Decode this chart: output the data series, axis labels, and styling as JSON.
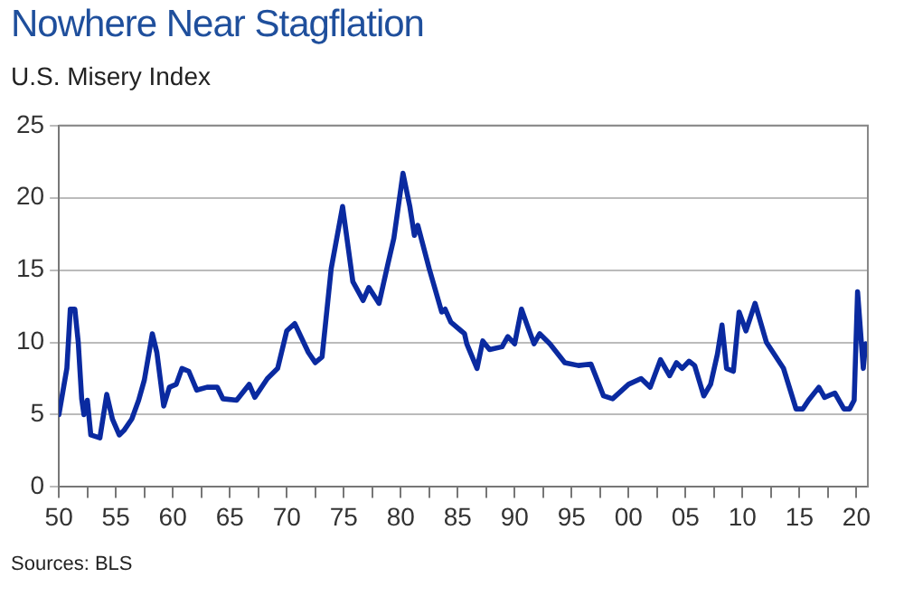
{
  "chart_data": {
    "type": "line",
    "title": "Nowhere Near Stagflation",
    "subtitle": "U.S. Misery Index",
    "annotations": [
      "Sources: BLS"
    ],
    "x": [
      1950,
      1950.7,
      1951.0,
      1951.4,
      1951.7,
      1952.0,
      1952.2,
      1952.5,
      1952.8,
      1953.6,
      1954.2,
      1954.7,
      1955.3,
      1955.7,
      1956.4,
      1957,
      1957.5,
      1958.2,
      1958.6,
      1959.2,
      1959.7,
      1960.3,
      1960.8,
      1961.4,
      1962.1,
      1963,
      1963.9,
      1964.4,
      1965.6,
      1966.7,
      1967.2,
      1968.3,
      1969.2,
      1970,
      1970.7,
      1971.9,
      1972.5,
      1973.1,
      1973.9,
      1974.9,
      1975.8,
      1976.7,
      1977.2,
      1978.1,
      1978.9,
      1979.4,
      1980.2,
      1980.8,
      1981.2,
      1981.5,
      1982.5,
      1983.6,
      1983.9,
      1984.4,
      1985.6,
      1985.8,
      1986.7,
      1987.2,
      1987.8,
      1988.9,
      1989.4,
      1990,
      1990.6,
      1991.1,
      1991.7,
      1992.2,
      1993.1,
      1994.4,
      1995.6,
      1996.7,
      1997.8,
      1998.6,
      2000,
      2001.1,
      2001.9,
      2002.8,
      2003.6,
      2004.2,
      2004.7,
      2005.3,
      2005.8,
      2006.6,
      2007.2,
      2007.8,
      2008.2,
      2008.6,
      2009.2,
      2009.7,
      2010.3,
      2011.1,
      2012.1,
      2013.6,
      2014.7,
      2015.3,
      2015.8,
      2016.7,
      2017.2,
      2018.1,
      2018.9,
      2019.4,
      2019.8,
      2020.1,
      2020.6,
      2020.8
    ],
    "series": [
      {
        "color": "#0a2aa0",
        "values": [
          5.0,
          8.2,
          12.3,
          12.3,
          10.0,
          6.1,
          5.0,
          6.0,
          3.6,
          3.4,
          6.4,
          4.7,
          3.6,
          3.9,
          4.7,
          6.0,
          7.4,
          10.6,
          9.3,
          5.6,
          6.9,
          7.1,
          8.2,
          8.0,
          6.7,
          6.9,
          6.9,
          6.1,
          6.0,
          7.1,
          6.2,
          7.5,
          8.2,
          10.8,
          11.3,
          9.3,
          8.6,
          9.0,
          15.1,
          19.4,
          14.2,
          12.9,
          13.8,
          12.7,
          15.5,
          17.2,
          21.7,
          19.4,
          17.4,
          18.1,
          15.1,
          12.1,
          12.3,
          11.4,
          10.6,
          9.9,
          8.2,
          10.1,
          9.5,
          9.7,
          10.4,
          9.9,
          12.3,
          11.2,
          9.9,
          10.6,
          9.9,
          8.6,
          8.4,
          8.5,
          6.3,
          6.1,
          7.1,
          7.5,
          6.9,
          8.8,
          7.7,
          8.6,
          8.2,
          8.7,
          8.4,
          6.3,
          7.1,
          9.2,
          11.2,
          8.2,
          8.0,
          12.1,
          10.8,
          12.7,
          10.0,
          8.2,
          5.4,
          5.4,
          6.0,
          6.9,
          6.2,
          6.5,
          5.4,
          5.4,
          6.0,
          13.5,
          8.2,
          9.9
        ]
      }
    ],
    "xlim": [
      1950,
      2021
    ],
    "xticks": [
      {
        "value": 1950,
        "label": "50"
      },
      {
        "value": 1952.5,
        "label": null
      },
      {
        "value": 1955,
        "label": "55"
      },
      {
        "value": 1957.5,
        "label": null
      },
      {
        "value": 1960,
        "label": "60"
      },
      {
        "value": 1962.5,
        "label": null
      },
      {
        "value": 1965,
        "label": "65"
      },
      {
        "value": 1967.5,
        "label": null
      },
      {
        "value": 1970,
        "label": "70"
      },
      {
        "value": 1972.5,
        "label": null
      },
      {
        "value": 1975,
        "label": "75"
      },
      {
        "value": 1977.5,
        "label": null
      },
      {
        "value": 1980,
        "label": "80"
      },
      {
        "value": 1982.5,
        "label": null
      },
      {
        "value": 1985,
        "label": "85"
      },
      {
        "value": 1987.5,
        "label": null
      },
      {
        "value": 1990,
        "label": "90"
      },
      {
        "value": 1992.5,
        "label": null
      },
      {
        "value": 1995,
        "label": "95"
      },
      {
        "value": 1997.5,
        "label": null
      },
      {
        "value": 2000,
        "label": "00"
      },
      {
        "value": 2002.5,
        "label": null
      },
      {
        "value": 2005,
        "label": "05"
      },
      {
        "value": 2007.5,
        "label": null
      },
      {
        "value": 2010,
        "label": "10"
      },
      {
        "value": 2012.5,
        "label": null
      },
      {
        "value": 2015,
        "label": "15"
      },
      {
        "value": 2017.5,
        "label": null
      },
      {
        "value": 2020,
        "label": "20"
      }
    ],
    "ylim": [
      0,
      25
    ],
    "yticks": [
      0,
      5,
      10,
      15,
      20,
      25
    ],
    "grid": "y",
    "legend": false,
    "marker": "none",
    "line_style": "solid"
  }
}
